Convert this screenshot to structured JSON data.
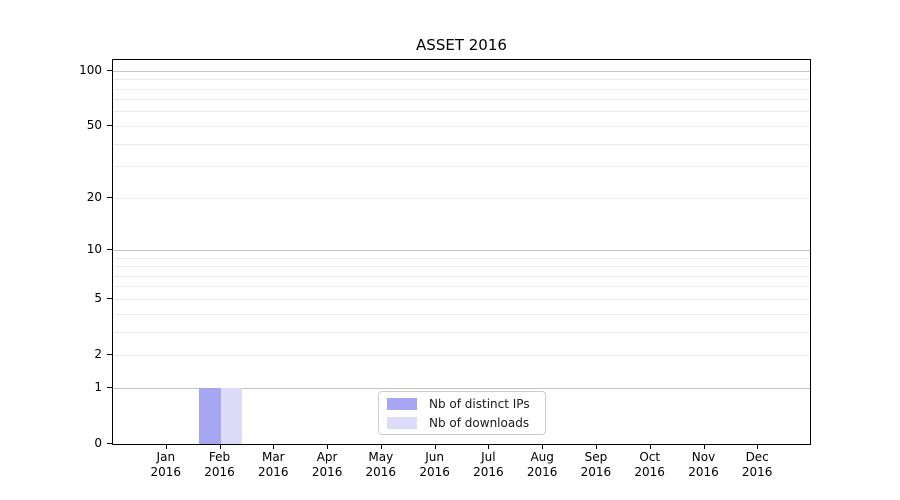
{
  "chart_data": {
    "type": "bar",
    "title": "ASSET 2016",
    "categories": [
      "Jan",
      "Feb",
      "Mar",
      "Apr",
      "May",
      "Jun",
      "Jul",
      "Aug",
      "Sep",
      "Oct",
      "Nov",
      "Dec"
    ],
    "year": "2016",
    "series": [
      {
        "name": "Nb of distinct IPs",
        "color": "#a6a6f2",
        "values": [
          0,
          1,
          0,
          0,
          0,
          0,
          0,
          0,
          0,
          0,
          0,
          0
        ]
      },
      {
        "name": "Nb of downloads",
        "color": "#dcdcf8",
        "values": [
          0,
          1,
          0,
          0,
          0,
          0,
          0,
          0,
          0,
          0,
          0,
          0
        ]
      }
    ],
    "y_axis": {
      "scale": "log1p",
      "ticks": [
        0,
        1,
        2,
        5,
        10,
        20,
        50,
        100
      ],
      "tick_labels": [
        "0",
        "1",
        "2",
        "5",
        "10",
        "20",
        "50",
        "100"
      ],
      "major_gridlines": [
        1,
        10,
        100
      ],
      "minor_gridlines": [
        2,
        3,
        4,
        5,
        6,
        7,
        8,
        9,
        20,
        30,
        40,
        50,
        60,
        70,
        80,
        90
      ],
      "ylim": [
        0,
        115
      ]
    },
    "legend": {
      "position": "lower center",
      "items": [
        "Nb of distinct IPs",
        "Nb of downloads"
      ]
    },
    "colors": {
      "major_grid": "#c3c3c3",
      "minor_grid": "#ebebeb",
      "spine": "#000000",
      "background": "#ffffff",
      "legend_border": "#cccccc"
    }
  }
}
